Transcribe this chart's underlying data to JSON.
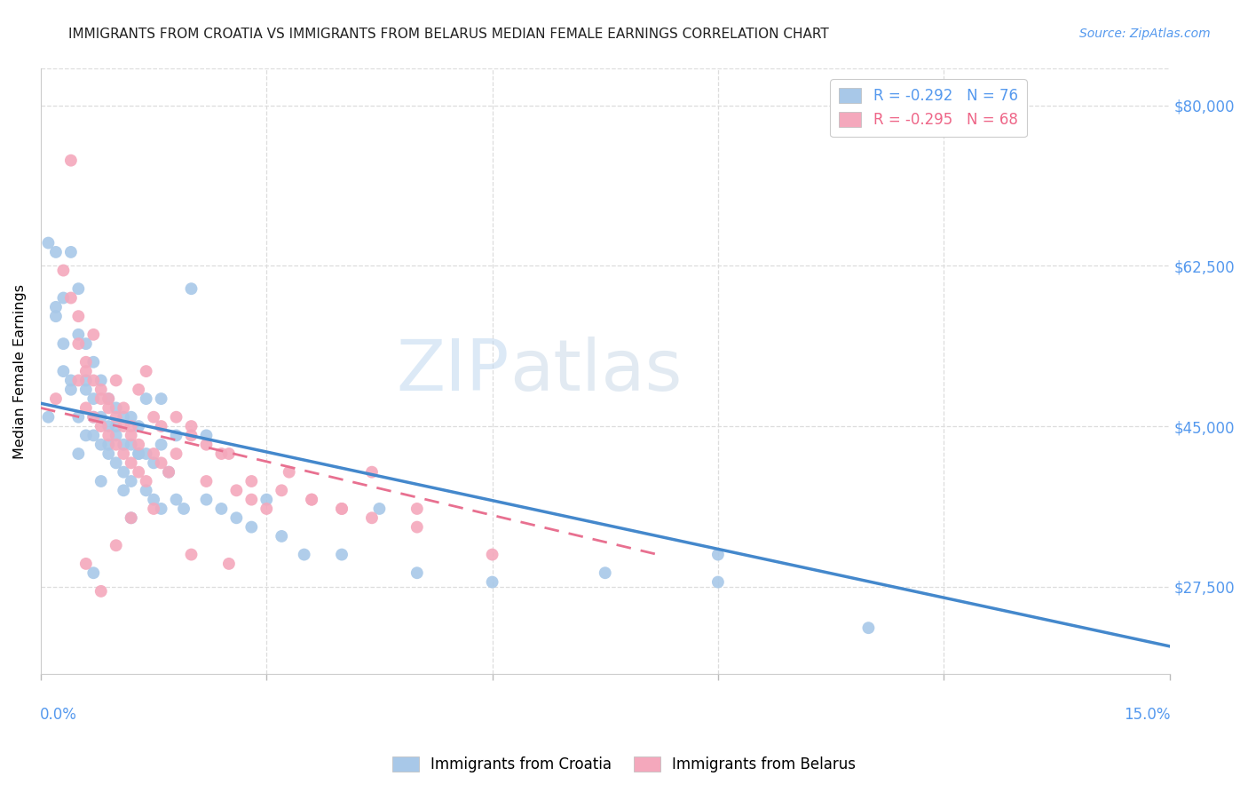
{
  "title": "IMMIGRANTS FROM CROATIA VS IMMIGRANTS FROM BELARUS MEDIAN FEMALE EARNINGS CORRELATION CHART",
  "source": "Source: ZipAtlas.com",
  "ylabel": "Median Female Earnings",
  "y_ticks": [
    27500,
    45000,
    62500,
    80000
  ],
  "y_tick_labels": [
    "$27,500",
    "$45,000",
    "$62,500",
    "$80,000"
  ],
  "xlim": [
    0.0,
    0.15
  ],
  "ylim": [
    18000,
    84000
  ],
  "croatia_color": "#a8c8e8",
  "belarus_color": "#f4a8bc",
  "trendline_croatia_color": "#4488cc",
  "trendline_belarus_color": "#e87090",
  "watermark_zip": "ZIP",
  "watermark_atlas": "atlas",
  "croatia_x": [
    0.001,
    0.002,
    0.002,
    0.003,
    0.003,
    0.004,
    0.004,
    0.005,
    0.005,
    0.005,
    0.006,
    0.006,
    0.006,
    0.007,
    0.007,
    0.007,
    0.008,
    0.008,
    0.008,
    0.009,
    0.009,
    0.009,
    0.01,
    0.01,
    0.01,
    0.011,
    0.011,
    0.011,
    0.012,
    0.012,
    0.012,
    0.013,
    0.013,
    0.014,
    0.014,
    0.015,
    0.015,
    0.016,
    0.016,
    0.017,
    0.018,
    0.019,
    0.02,
    0.022,
    0.024,
    0.026,
    0.028,
    0.032,
    0.035,
    0.04,
    0.045,
    0.05,
    0.06,
    0.075,
    0.09,
    0.11,
    0.001,
    0.002,
    0.003,
    0.004,
    0.005,
    0.006,
    0.007,
    0.008,
    0.009,
    0.01,
    0.011,
    0.012,
    0.013,
    0.014,
    0.016,
    0.018,
    0.022,
    0.03,
    0.09,
    0.007
  ],
  "croatia_y": [
    46000,
    57000,
    64000,
    54000,
    59000,
    64000,
    49000,
    55000,
    60000,
    46000,
    49000,
    54000,
    44000,
    48000,
    52000,
    44000,
    46000,
    50000,
    43000,
    45000,
    48000,
    42000,
    44000,
    47000,
    41000,
    43000,
    46000,
    40000,
    43000,
    46000,
    39000,
    42000,
    45000,
    42000,
    38000,
    41000,
    37000,
    43000,
    36000,
    40000,
    37000,
    36000,
    60000,
    37000,
    36000,
    35000,
    34000,
    33000,
    31000,
    31000,
    36000,
    29000,
    28000,
    29000,
    28000,
    23000,
    65000,
    58000,
    51000,
    50000,
    42000,
    50000,
    46000,
    39000,
    43000,
    45000,
    38000,
    35000,
    42000,
    48000,
    48000,
    44000,
    44000,
    37000,
    31000,
    29000
  ],
  "belarus_x": [
    0.002,
    0.003,
    0.004,
    0.005,
    0.005,
    0.006,
    0.006,
    0.007,
    0.007,
    0.008,
    0.008,
    0.009,
    0.009,
    0.01,
    0.01,
    0.011,
    0.011,
    0.012,
    0.012,
    0.013,
    0.013,
    0.014,
    0.015,
    0.016,
    0.017,
    0.018,
    0.02,
    0.022,
    0.024,
    0.026,
    0.028,
    0.03,
    0.033,
    0.036,
    0.04,
    0.044,
    0.05,
    0.06,
    0.004,
    0.005,
    0.006,
    0.007,
    0.008,
    0.009,
    0.01,
    0.011,
    0.012,
    0.013,
    0.014,
    0.015,
    0.016,
    0.018,
    0.02,
    0.022,
    0.025,
    0.028,
    0.032,
    0.036,
    0.04,
    0.044,
    0.05,
    0.006,
    0.008,
    0.01,
    0.012,
    0.015,
    0.02,
    0.025
  ],
  "belarus_y": [
    48000,
    62000,
    59000,
    54000,
    50000,
    47000,
    51000,
    46000,
    50000,
    45000,
    48000,
    44000,
    47000,
    43000,
    46000,
    42000,
    45000,
    41000,
    44000,
    40000,
    43000,
    39000,
    42000,
    41000,
    40000,
    46000,
    45000,
    39000,
    42000,
    38000,
    37000,
    36000,
    40000,
    37000,
    36000,
    40000,
    36000,
    31000,
    74000,
    57000,
    52000,
    55000,
    49000,
    48000,
    50000,
    47000,
    45000,
    49000,
    51000,
    46000,
    45000,
    42000,
    44000,
    43000,
    42000,
    39000,
    38000,
    37000,
    36000,
    35000,
    34000,
    30000,
    27000,
    32000,
    35000,
    36000,
    31000,
    30000
  ],
  "croatia_trend_x": [
    0.0,
    0.15
  ],
  "croatia_trend_y": [
    47500,
    21000
  ],
  "belarus_trend_x": [
    0.0,
    0.082
  ],
  "belarus_trend_y": [
    47000,
    31000
  ]
}
